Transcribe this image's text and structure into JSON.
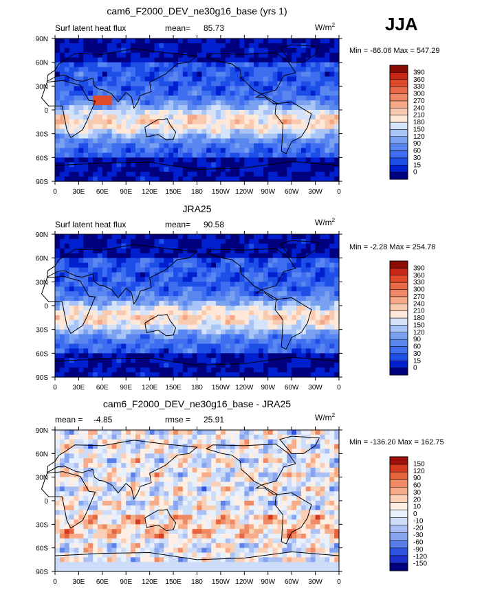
{
  "season": "JJA",
  "unit_base": "W/m",
  "unit_exp": "2",
  "colors": {
    "abs_scale": [
      "#00007f",
      "#0020d0",
      "#1e4ee8",
      "#3f6ef0",
      "#5a86f0",
      "#7aa0f0",
      "#a8c4f6",
      "#d4e2fa",
      "#ffe8d8",
      "#f8cab0",
      "#f4a888",
      "#ee8866",
      "#e86a48",
      "#de4a2a",
      "#c82616",
      "#8a0a06"
    ],
    "diff_scale": [
      "#00007f",
      "#1a2fcc",
      "#2f52e0",
      "#5a7fea",
      "#86a4f0",
      "#aac0f4",
      "#cddcf8",
      "#e8f0fc",
      "#ffeee4",
      "#fbcfb4",
      "#f6ac88",
      "#f08a64",
      "#e6653f",
      "#d63a1e",
      "#9e0f0a"
    ],
    "land_outline": "#000000"
  },
  "chart_data": [
    {
      "type": "heatmap",
      "title": "cam6_F2000_DEV_ne30g16_base (yrs 1)",
      "variable": "Surf latent heat flux",
      "stat1_label": "mean=",
      "stat1_value": "85.73",
      "stat2_label": "",
      "stat2_value": "",
      "min_label": "Min =",
      "min": "-86.06",
      "max_label": "Max =",
      "max": "547.29",
      "x_ticks": [
        "0",
        "30E",
        "60E",
        "90E",
        "120E",
        "150E",
        "180",
        "150W",
        "120W",
        "90W",
        "60W",
        "30W",
        "0"
      ],
      "y_ticks": [
        "90N",
        "60N",
        "30N",
        "0",
        "30S",
        "60S",
        "90S"
      ],
      "xlim": [
        0,
        360
      ],
      "ylim": [
        -90,
        90
      ],
      "colorbar_levels": [
        "390",
        "360",
        "330",
        "300",
        "270",
        "240",
        "210",
        "180",
        "150",
        "120",
        "90",
        "60",
        "30",
        "15",
        "0"
      ],
      "scale": "abs"
    },
    {
      "type": "heatmap",
      "title": "JRA25",
      "variable": "Surf latent heat flux",
      "stat1_label": "mean=",
      "stat1_value": "90.58",
      "stat2_label": "",
      "stat2_value": "",
      "min_label": "Min =",
      "min": "-2.28",
      "max_label": "Max =",
      "max": "254.78",
      "x_ticks": [
        "0",
        "30E",
        "60E",
        "90E",
        "120E",
        "150E",
        "180",
        "150W",
        "120W",
        "90W",
        "60W",
        "30W",
        "0"
      ],
      "y_ticks": [
        "90N",
        "60N",
        "30N",
        "0",
        "30S",
        "60S",
        "90S"
      ],
      "xlim": [
        0,
        360
      ],
      "ylim": [
        -90,
        90
      ],
      "colorbar_levels": [
        "390",
        "360",
        "330",
        "300",
        "270",
        "240",
        "210",
        "180",
        "150",
        "120",
        "90",
        "60",
        "30",
        "15",
        "0"
      ],
      "scale": "abs"
    },
    {
      "type": "heatmap",
      "title": "cam6_F2000_DEV_ne30g16_base - JRA25",
      "variable": "",
      "stat1_label": "mean =",
      "stat1_value": "-4.85",
      "stat2_label": "rmse =",
      "stat2_value": "25.91",
      "min_label": "Min =",
      "min": "-136.20",
      "max_label": "Max =",
      "max": "162.75",
      "x_ticks": [
        "0",
        "30E",
        "60E",
        "90E",
        "120E",
        "150E",
        "180",
        "150W",
        "120W",
        "90W",
        "60W",
        "30W",
        "0"
      ],
      "y_ticks": [
        "90N",
        "60N",
        "30N",
        "0",
        "30S",
        "60S",
        "90S"
      ],
      "xlim": [
        0,
        360
      ],
      "ylim": [
        -90,
        90
      ],
      "colorbar_levels": [
        "150",
        "120",
        "90",
        "60",
        "30",
        "20",
        "10",
        "0",
        "-10",
        "-20",
        "-30",
        "-60",
        "-90",
        "-120",
        "-150"
      ],
      "scale": "diff"
    }
  ]
}
